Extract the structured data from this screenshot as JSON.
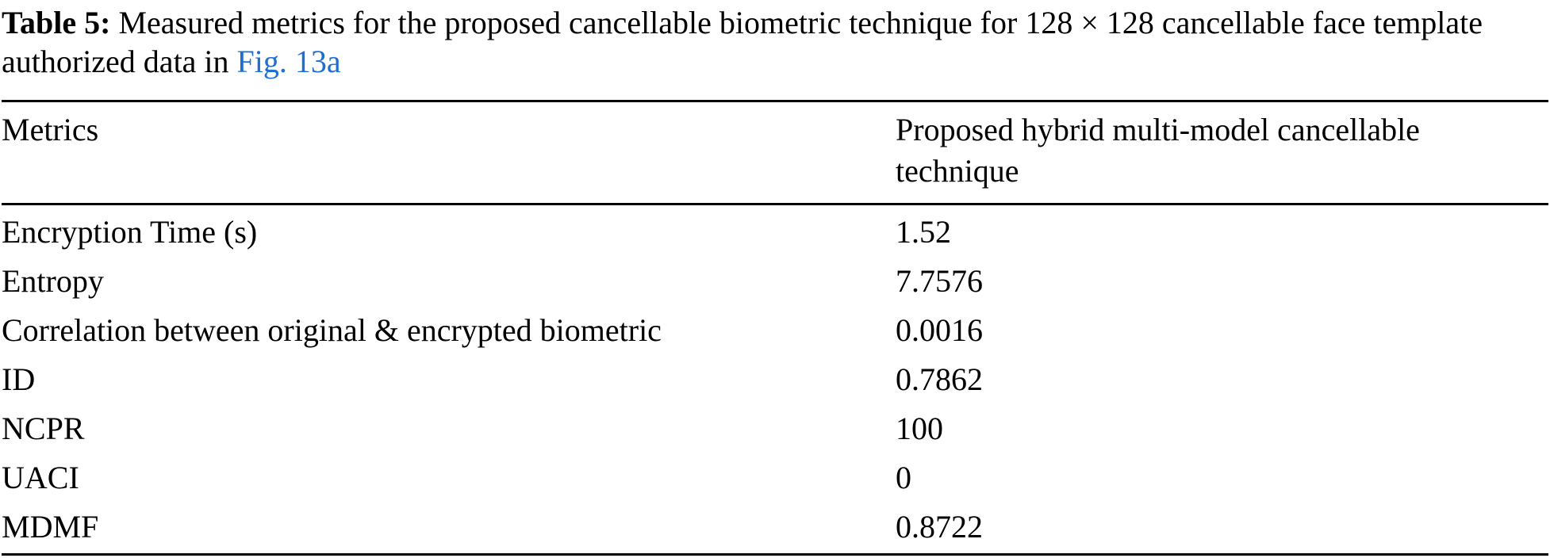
{
  "page": {
    "background_color": "#ffffff",
    "text_color": "#000000",
    "link_color": "#1d6fd1"
  },
  "caption": {
    "label": "Table 5:",
    "text": " Measured metrics for the proposed cancellable biometric technique for 128 × 128 cancellable face template authorized data in ",
    "link": "Fig. 13a"
  },
  "table": {
    "columns": [
      "Metrics",
      "Proposed hybrid multi-model cancellable technique"
    ],
    "rows": [
      {
        "metric": "Encryption Time (s)",
        "value": "1.52"
      },
      {
        "metric": "Entropy",
        "value": "7.7576"
      },
      {
        "metric": "Correlation between original & encrypted biometric",
        "value": "0.0016"
      },
      {
        "metric": "ID",
        "value": "0.7862"
      },
      {
        "metric": "NCPR",
        "value": "100"
      },
      {
        "metric": "UACI",
        "value": "0"
      },
      {
        "metric": "MDMF",
        "value": "0.8722"
      }
    ]
  }
}
